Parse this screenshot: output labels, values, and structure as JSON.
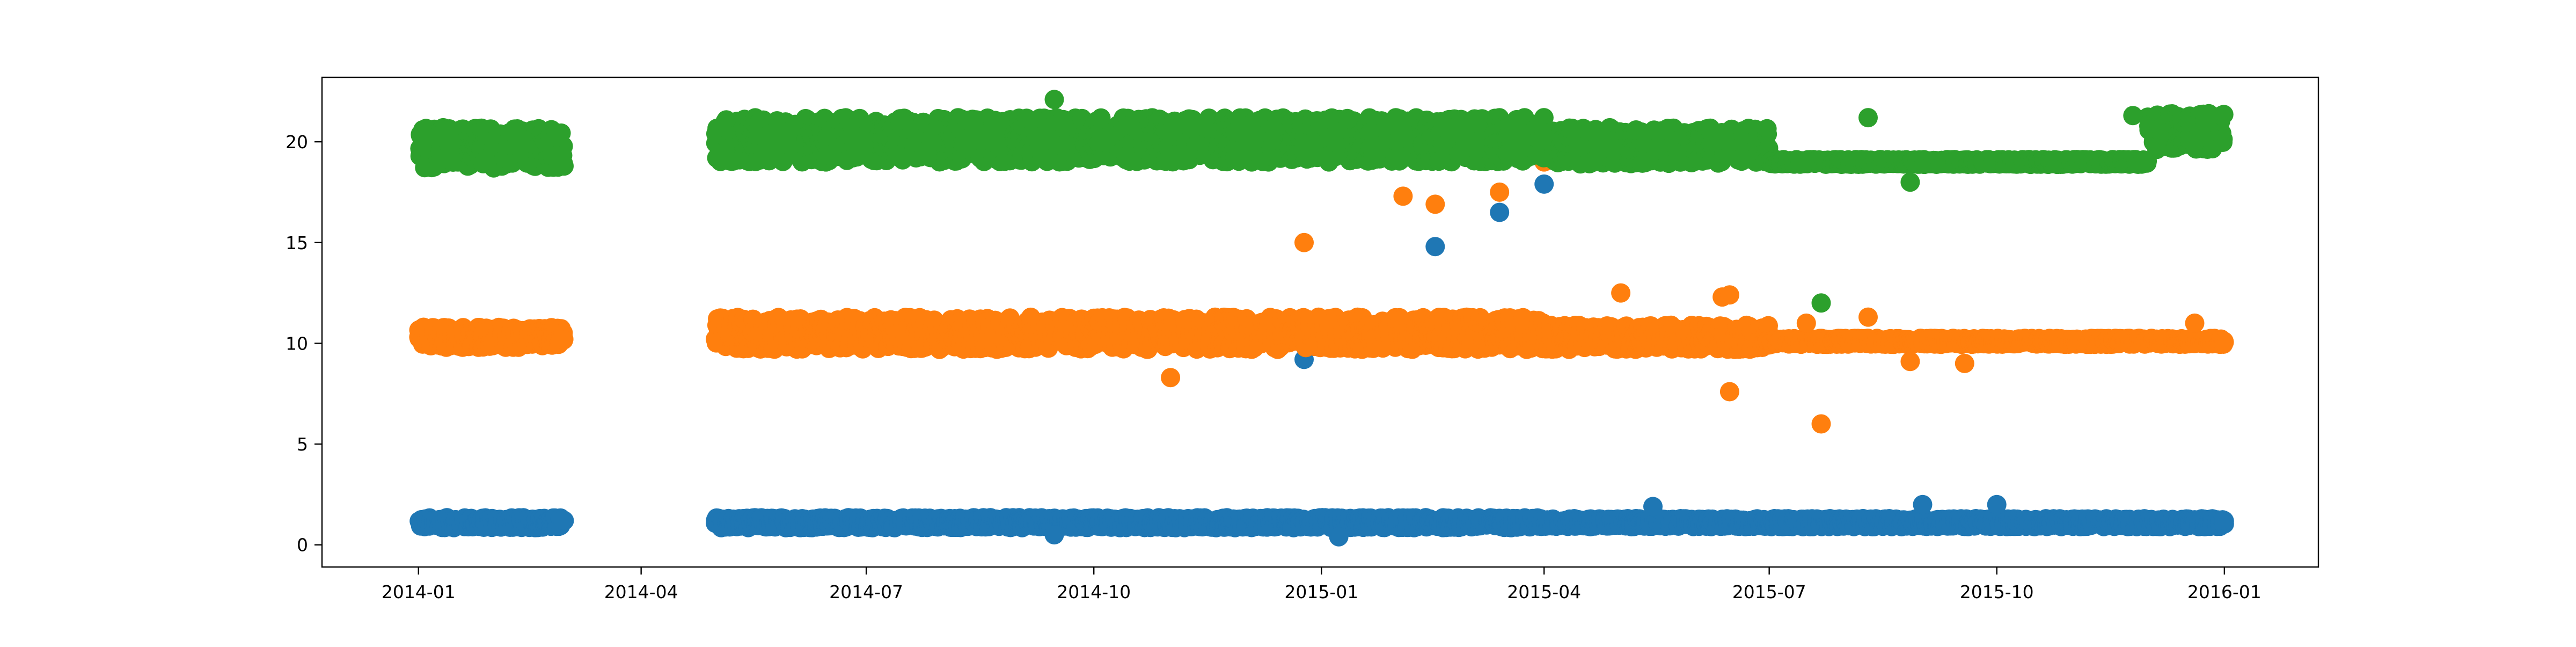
{
  "chart_data": {
    "type": "scatter",
    "title": "",
    "xlabel": "",
    "ylabel": "",
    "xlim": [
      "2013-11-23",
      "2016-02-08"
    ],
    "ylim": [
      -1.1,
      23.2
    ],
    "grid": false,
    "legend": "none",
    "x_ticks": [
      "2014-01",
      "2014-04",
      "2014-07",
      "2014-10",
      "2015-01",
      "2015-04",
      "2015-07",
      "2015-10",
      "2016-01"
    ],
    "y_ticks": [
      0,
      5,
      10,
      15,
      20
    ],
    "data_ranges": [
      [
        "2014-01-01",
        "2014-02-28"
      ],
      [
        "2014-05-01",
        "2015-12-31"
      ]
    ],
    "series": [
      {
        "color": "#1f77b4",
        "segments": [
          {
            "start": "2014-01-01",
            "end": "2014-02-28",
            "center": 1.1,
            "amplitude": 0.25
          },
          {
            "start": "2014-05-01",
            "end": "2015-03-31",
            "center": 1.1,
            "amplitude": 0.25
          },
          {
            "start": "2015-04-01",
            "end": "2015-12-31",
            "center": 1.1,
            "amplitude": 0.2
          }
        ],
        "outliers": [
          {
            "x": "2014-12-25",
            "y": 9.2
          },
          {
            "x": "2015-02-16",
            "y": 14.8
          },
          {
            "x": "2015-03-14",
            "y": 16.5
          },
          {
            "x": "2015-04-01",
            "y": 17.9
          },
          {
            "x": "2015-05-15",
            "y": 1.9
          },
          {
            "x": "2015-09-01",
            "y": 2.0
          },
          {
            "x": "2015-10-01",
            "y": 2.0
          },
          {
            "x": "2014-09-15",
            "y": 0.5
          },
          {
            "x": "2015-01-08",
            "y": 0.4
          }
        ]
      },
      {
        "color": "#ff7f0e",
        "segments": [
          {
            "start": "2014-01-01",
            "end": "2014-02-28",
            "center": 10.3,
            "amplitude": 0.5
          },
          {
            "start": "2014-05-01",
            "end": "2015-03-31",
            "center": 10.5,
            "amplitude": 0.8
          },
          {
            "start": "2015-04-01",
            "end": "2015-06-30",
            "center": 10.3,
            "amplitude": 0.6
          },
          {
            "start": "2015-07-01",
            "end": "2015-12-31",
            "center": 10.1,
            "amplitude": 0.15
          }
        ],
        "outliers": [
          {
            "x": "2014-11-01",
            "y": 8.3
          },
          {
            "x": "2014-12-25",
            "y": 15.0
          },
          {
            "x": "2015-02-03",
            "y": 17.3
          },
          {
            "x": "2015-02-16",
            "y": 16.9
          },
          {
            "x": "2015-03-14",
            "y": 17.5
          },
          {
            "x": "2015-04-01",
            "y": 19.0
          },
          {
            "x": "2015-05-02",
            "y": 12.5
          },
          {
            "x": "2015-06-12",
            "y": 12.3
          },
          {
            "x": "2015-06-15",
            "y": 12.4
          },
          {
            "x": "2015-06-15",
            "y": 7.6
          },
          {
            "x": "2015-07-16",
            "y": 11.0
          },
          {
            "x": "2015-07-22",
            "y": 6.0
          },
          {
            "x": "2015-08-27",
            "y": 9.1
          },
          {
            "x": "2015-09-18",
            "y": 9.0
          },
          {
            "x": "2015-08-10",
            "y": 11.3
          },
          {
            "x": "2015-12-20",
            "y": 11.0
          }
        ]
      },
      {
        "color": "#2ca02c",
        "segments": [
          {
            "start": "2014-01-01",
            "end": "2014-02-28",
            "center": 19.7,
            "amplitude": 1.0
          },
          {
            "start": "2014-05-01",
            "end": "2015-03-31",
            "center": 20.1,
            "amplitude": 1.1
          },
          {
            "start": "2015-04-01",
            "end": "2015-06-30",
            "center": 19.8,
            "amplitude": 0.9
          },
          {
            "start": "2015-07-01",
            "end": "2015-11-30",
            "center": 19.0,
            "amplitude": 0.12
          },
          {
            "start": "2015-12-01",
            "end": "2015-12-31",
            "center": 20.5,
            "amplitude": 0.9
          }
        ],
        "outliers": [
          {
            "x": "2014-09-15",
            "y": 22.1
          },
          {
            "x": "2015-07-22",
            "y": 12.0
          },
          {
            "x": "2015-08-27",
            "y": 18.0
          },
          {
            "x": "2015-08-10",
            "y": 21.2
          },
          {
            "x": "2015-12-05",
            "y": 20.6
          },
          {
            "x": "2015-11-25",
            "y": 21.3
          }
        ]
      }
    ]
  }
}
